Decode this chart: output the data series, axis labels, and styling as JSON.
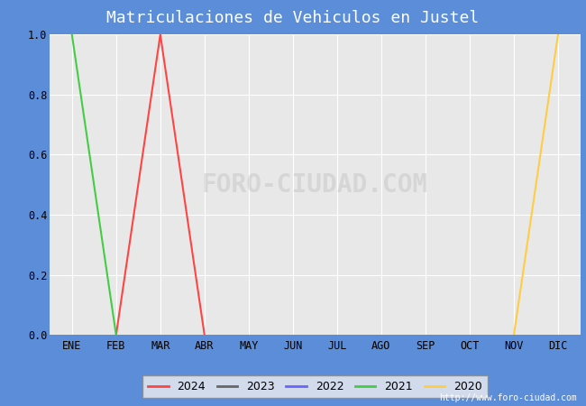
{
  "title": "Matriculaciones de Vehiculos en Justel",
  "title_bg_color": "#5b8dd9",
  "title_text_color": "#ffffff",
  "plot_bg_color": "#e8e8e8",
  "fig_bg_color": "#5b8dd9",
  "grid_color": "#ffffff",
  "months": [
    "ENE",
    "FEB",
    "MAR",
    "ABR",
    "MAY",
    "JUN",
    "JUL",
    "AGO",
    "SEP",
    "OCT",
    "NOV",
    "DIC"
  ],
  "month_indices": [
    1,
    2,
    3,
    4,
    5,
    6,
    7,
    8,
    9,
    10,
    11,
    12
  ],
  "ylim": [
    0.0,
    1.0
  ],
  "series": [
    {
      "year": "2024",
      "color": "#ff4444",
      "data": [
        [
          2,
          0.0
        ],
        [
          3,
          1.0
        ],
        [
          4,
          0.0
        ]
      ]
    },
    {
      "year": "2023",
      "color": "#666666",
      "data": []
    },
    {
      "year": "2022",
      "color": "#6666ff",
      "data": []
    },
    {
      "year": "2021",
      "color": "#44cc44",
      "data": [
        [
          1,
          1.0
        ],
        [
          2,
          0.0
        ]
      ]
    },
    {
      "year": "2020",
      "color": "#ffcc44",
      "data": [
        [
          11,
          0.0
        ],
        [
          12,
          1.0
        ]
      ]
    }
  ],
  "legend_bg_color": "#f0f0f0",
  "legend_border_color": "#888888",
  "url_text": "http://www.foro-ciudad.com",
  "watermark": "FORO-CIUDAD.COM",
  "watermark_color": "#bbbbbb",
  "watermark_alpha": 0.4
}
